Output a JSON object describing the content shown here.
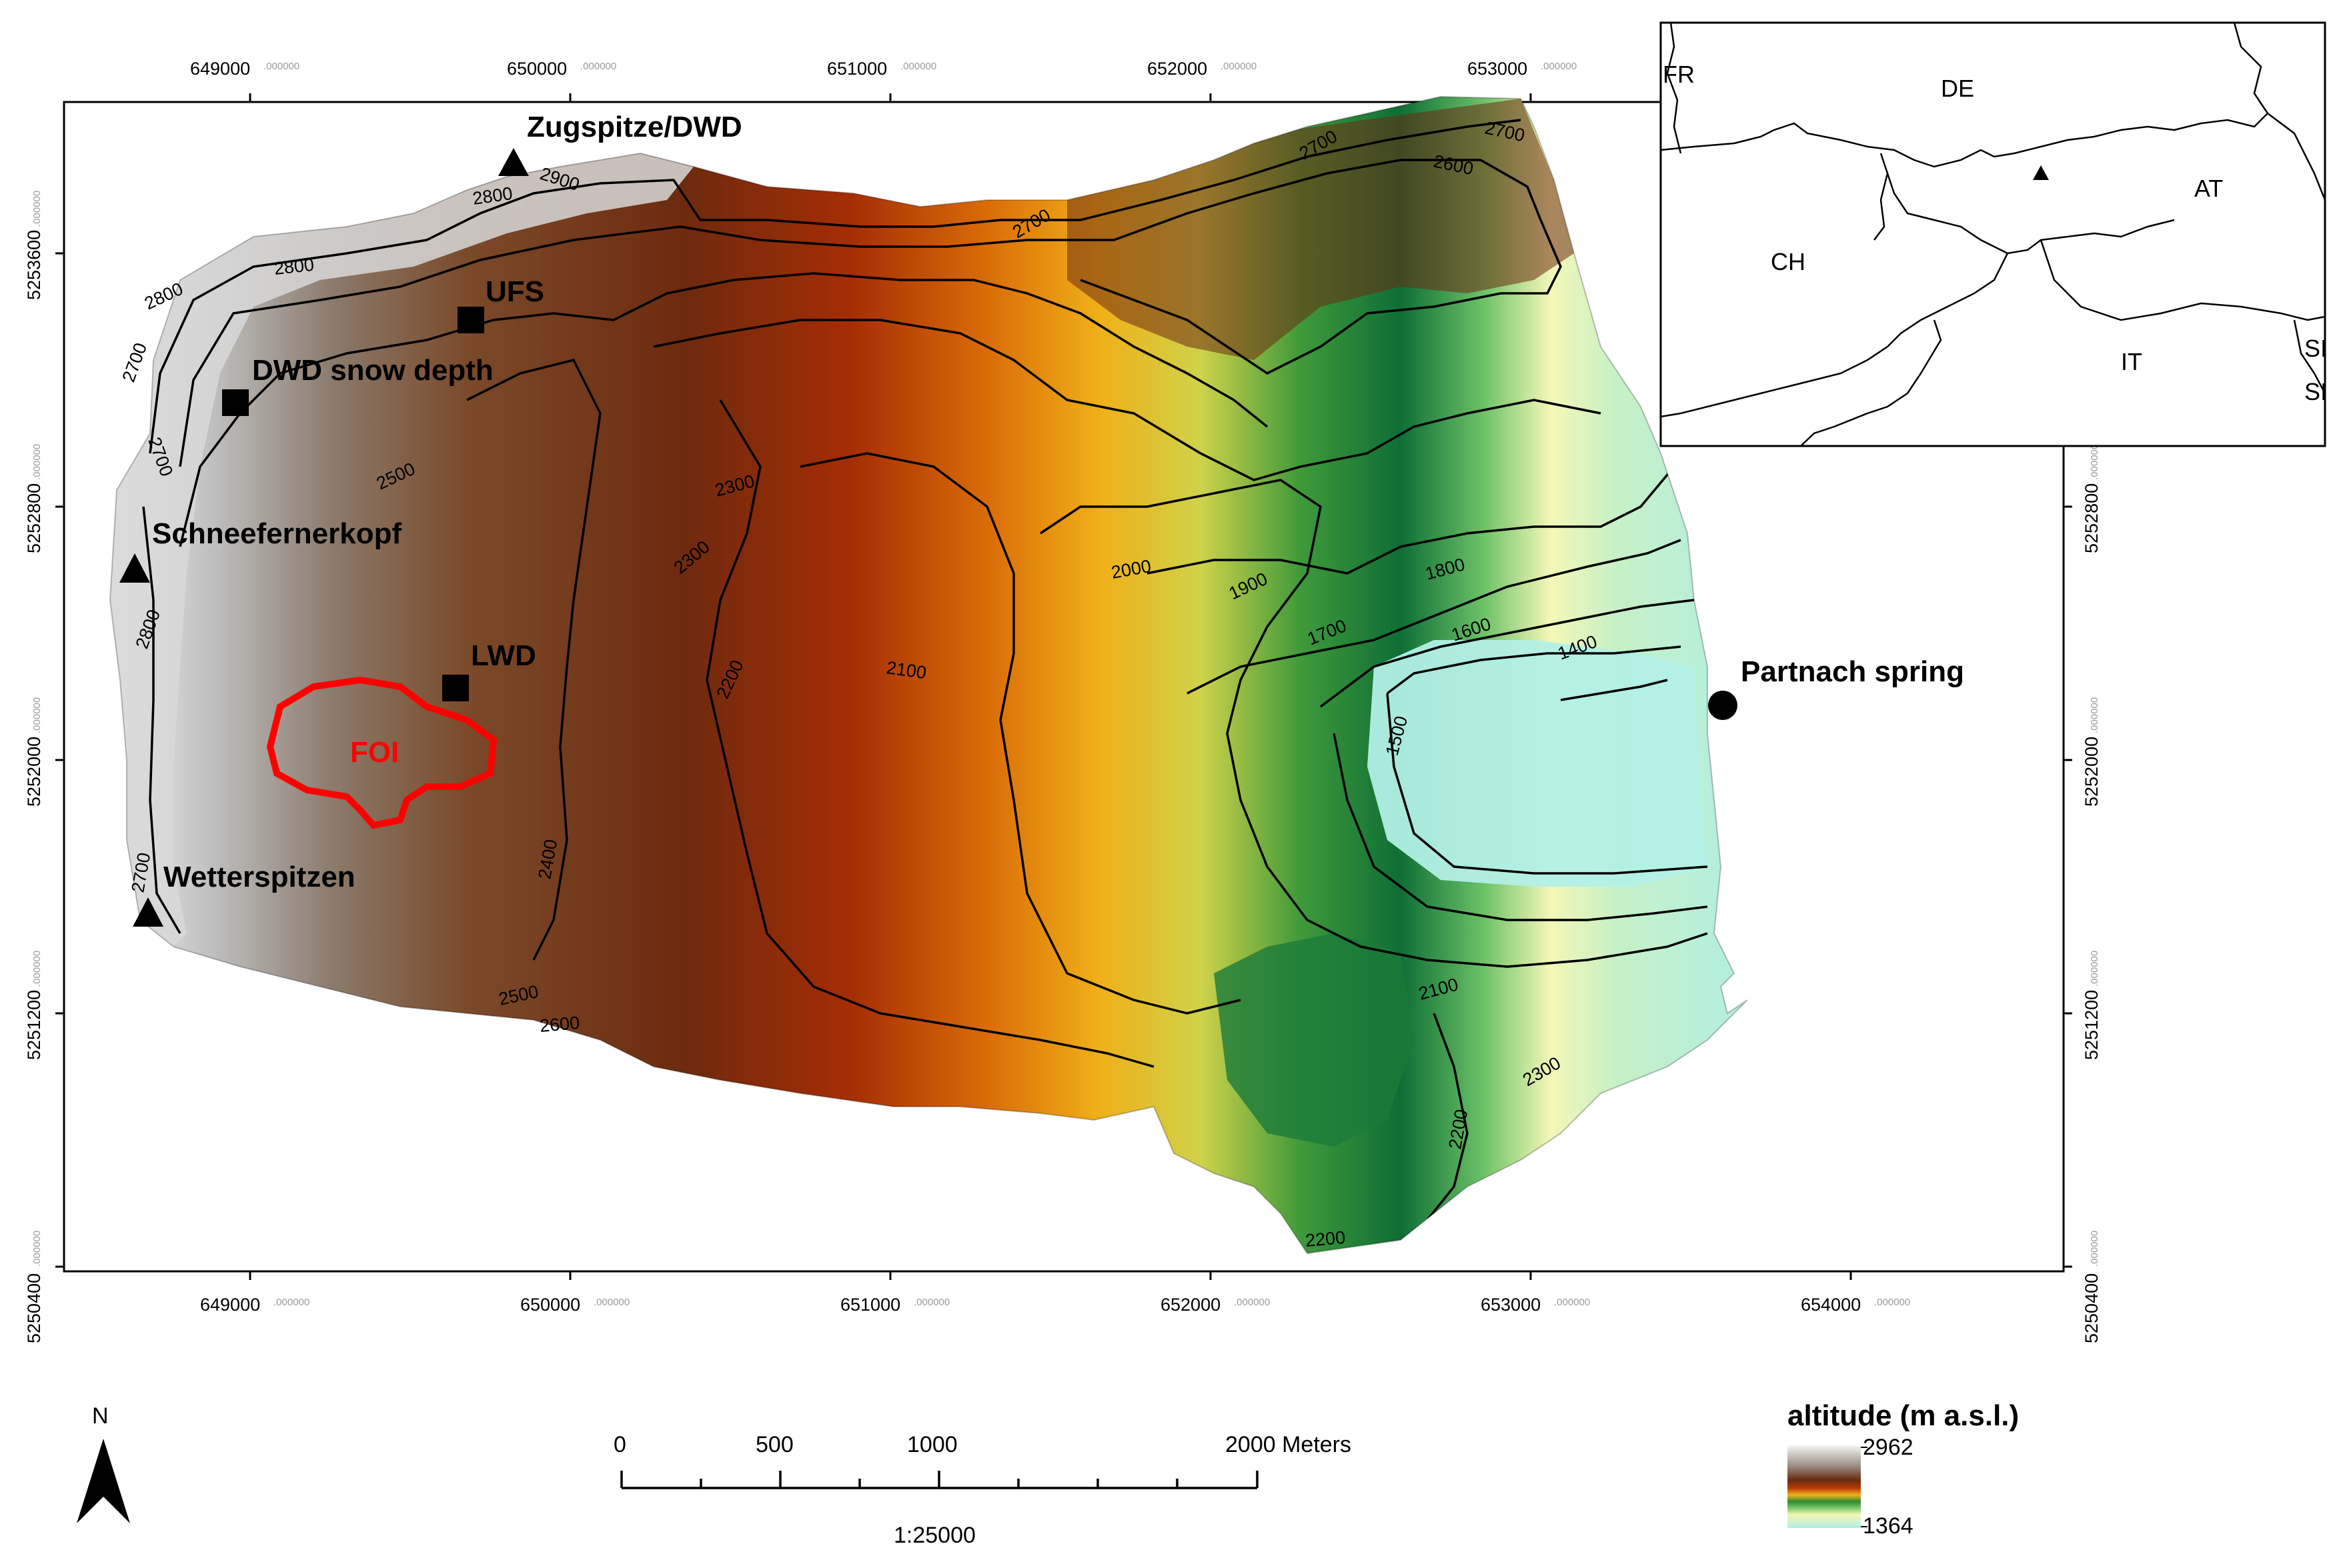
{
  "map": {
    "x_ticks": [
      {
        "label": "649000",
        "dec": ".000000"
      },
      {
        "label": "650000",
        "dec": ".000000"
      },
      {
        "label": "651000",
        "dec": ".000000"
      },
      {
        "label": "652000",
        "dec": ".000000"
      },
      {
        "label": "653000",
        "dec": ".000000"
      },
      {
        "label": "654000",
        "dec": ".000000"
      }
    ],
    "y_ticks": [
      {
        "label": "5253600",
        "dec": ".000000"
      },
      {
        "label": "5252800",
        "dec": ".000000"
      },
      {
        "label": "5252000",
        "dec": ".000000"
      },
      {
        "label": "5251200",
        "dec": ".000000"
      },
      {
        "label": "5250400",
        "dec": ".000000"
      }
    ],
    "contour_labels": [
      "2900",
      "2800",
      "2800",
      "2800",
      "2700",
      "2700",
      "2700",
      "2700",
      "2800",
      "2500",
      "2300",
      "2300",
      "2200",
      "2100",
      "2000",
      "1900",
      "1800",
      "1700",
      "1600",
      "1500",
      "1400",
      "2400",
      "2500",
      "2600",
      "2700",
      "2600",
      "2700",
      "2100",
      "2200",
      "2200",
      "2300"
    ],
    "sites": {
      "zugspitze": "Zugspitze/DWD",
      "ufs": "UFS",
      "dwd_snow": "DWD snow depth",
      "schneefernerkopf": "Schneefernerkopf",
      "lwd": "LWD",
      "foi": "FOI",
      "wetterspitzen": "Wetterspitzen",
      "partnach": "Partnach spring"
    },
    "foi_color": "#ff0000"
  },
  "inset": {
    "countries": [
      "FR",
      "DE",
      "AT",
      "CH",
      "IT",
      "SI",
      "SI"
    ]
  },
  "legend": {
    "title": "altitude (m a.s.l.)",
    "max": "2962",
    "min": "1364"
  },
  "scalebar": {
    "labels": [
      "0",
      "500",
      "1000",
      "2000 Meters"
    ],
    "ratio": "1:25000"
  },
  "north_arrow": {
    "label": "N"
  }
}
